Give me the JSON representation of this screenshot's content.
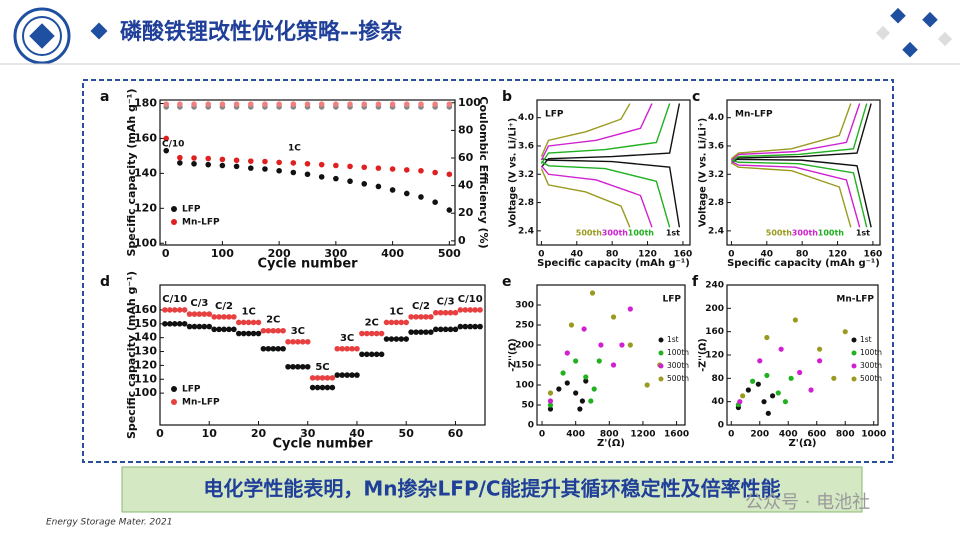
{
  "header": {
    "title": "磷酸铁锂改性优化策略--掺杂"
  },
  "caption": "电化学性能表明，Mn掺杂LFP/C能提升其循环稳定性及倍率性能",
  "footer": "Energy Storage Mater. 2021",
  "watermark": "公众号 · 电池社",
  "chart_data": [
    {
      "type": "scatter",
      "panel": "a",
      "xlabel": "Cycle number",
      "ylabel": "Specific capacity (mAh g⁻¹)",
      "y2label": "Coulombic Efficiency (%)",
      "xlim": [
        -10,
        510
      ],
      "xticks": [
        0,
        100,
        200,
        300,
        400,
        500
      ],
      "ylim": [
        99,
        182
      ],
      "yticks": [
        100,
        120,
        140,
        160,
        180
      ],
      "y2lim": [
        -3,
        102
      ],
      "y2ticks": [
        0,
        20,
        40,
        60,
        80,
        100
      ],
      "legend": "lower left",
      "annotations": [
        "C/10",
        "1C"
      ],
      "series": [
        {
          "name": "LFP",
          "color": "#111111",
          "x": [
            1,
            25,
            50,
            75,
            100,
            125,
            150,
            175,
            200,
            225,
            250,
            275,
            300,
            325,
            350,
            375,
            400,
            425,
            450,
            475,
            500
          ],
          "values": [
            153,
            146,
            145.5,
            145,
            144.5,
            144,
            143,
            142.5,
            141.5,
            140.5,
            139.5,
            138,
            137,
            135.5,
            134,
            132.5,
            130.5,
            128.5,
            126.5,
            123.5,
            119
          ]
        },
        {
          "name": "Mn-LFP",
          "color": "#e02020",
          "x": [
            1,
            25,
            50,
            75,
            100,
            125,
            150,
            175,
            200,
            225,
            250,
            275,
            300,
            325,
            350,
            375,
            400,
            425,
            450,
            475,
            500
          ],
          "values": [
            160,
            149,
            148.8,
            148.5,
            148,
            147.5,
            147,
            146.8,
            146.3,
            146,
            145.5,
            145,
            144.5,
            144,
            143.5,
            143,
            142.5,
            142,
            141.5,
            140.5,
            139.5
          ]
        },
        {
          "axis": "y2",
          "color": "#888888",
          "x": [
            1,
            25,
            50,
            75,
            100,
            125,
            150,
            175,
            200,
            225,
            250,
            275,
            300,
            325,
            350,
            375,
            400,
            425,
            450,
            475,
            500
          ],
          "values": [
            97,
            97,
            97,
            97,
            97,
            97,
            97,
            97,
            97,
            97,
            97,
            97,
            97,
            97,
            97,
            97,
            97,
            97,
            97,
            97,
            97
          ]
        },
        {
          "axis": "y2",
          "color": "#f08080",
          "x": [
            1,
            25,
            50,
            75,
            100,
            125,
            150,
            175,
            200,
            225,
            250,
            275,
            300,
            325,
            350,
            375,
            400,
            425,
            450,
            475,
            500
          ],
          "values": [
            99,
            99,
            99,
            99,
            99,
            99,
            99,
            99,
            99,
            99,
            99,
            99,
            99,
            99,
            99,
            99,
            99,
            99,
            99,
            99,
            99
          ]
        }
      ]
    },
    {
      "type": "line",
      "panel": "b",
      "label": "LFP",
      "xlabel": "Specific capacity (mAh g⁻¹)",
      "ylabel": "Voltage (V vs. Li/Li⁺)",
      "xlim": [
        -5,
        168
      ],
      "xticks": [
        0,
        40,
        80,
        120,
        160
      ],
      "ylim": [
        2.2,
        4.25
      ],
      "yticks": [
        2.4,
        2.8,
        3.2,
        3.6,
        {
          "value": 4,
          "label": "4.0"
        }
      ],
      "legend": "bottom",
      "series": [
        {
          "name": "1st",
          "color": "#111111",
          "charge": {
            "x": [
              0,
              8,
              80,
              145,
              156
            ],
            "values": [
              3.3,
              3.42,
              3.45,
              3.5,
              4.2
            ]
          },
          "discharge": {
            "x": [
              0,
              8,
              80,
              145,
              156
            ],
            "values": [
              3.42,
              3.4,
              3.38,
              3.3,
              2.45
            ]
          }
        },
        {
          "name": "100th",
          "color": "#20b020",
          "charge": {
            "x": [
              0,
              8,
              72,
              130,
              145
            ],
            "values": [
              3.35,
              3.5,
              3.55,
              3.65,
              4.2
            ]
          },
          "discharge": {
            "x": [
              0,
              8,
              72,
              130,
              145
            ],
            "values": [
              3.38,
              3.32,
              3.28,
              3.1,
              2.45
            ]
          }
        },
        {
          "name": "300th",
          "color": "#d020d0",
          "charge": {
            "x": [
              0,
              8,
              62,
              112,
              125
            ],
            "values": [
              3.4,
              3.6,
              3.68,
              3.85,
              4.2
            ]
          },
          "discharge": {
            "x": [
              0,
              8,
              62,
              112,
              125
            ],
            "values": [
              3.32,
              3.2,
              3.12,
              2.9,
              2.45
            ]
          }
        },
        {
          "name": "500th",
          "color": "#9a9a20",
          "charge": {
            "x": [
              0,
              8,
              50,
              90,
              100
            ],
            "values": [
              3.45,
              3.68,
              3.8,
              3.98,
              4.2
            ]
          },
          "discharge": {
            "x": [
              0,
              8,
              50,
              90,
              100
            ],
            "values": [
              3.28,
              3.05,
              2.95,
              2.75,
              2.45
            ]
          }
        }
      ]
    },
    {
      "type": "line",
      "panel": "c",
      "label": "Mn-LFP",
      "xlabel": "Specific capacity (mAh g⁻¹)",
      "ylabel": "Voltage (V vs. Li/Li⁺)",
      "xlim": [
        -5,
        168
      ],
      "xticks": [
        0,
        40,
        80,
        120,
        160
      ],
      "ylim": [
        2.2,
        4.25
      ],
      "yticks": [
        2.4,
        2.8,
        3.2,
        3.6,
        {
          "value": 4,
          "label": "4.0"
        }
      ],
      "legend": "bottom",
      "series": [
        {
          "name": "1st",
          "color": "#111111",
          "charge": {
            "x": [
              0,
              8,
              79,
              142,
              158
            ],
            "values": [
              3.35,
              3.43,
              3.45,
              3.5,
              4.2
            ]
          },
          "discharge": {
            "x": [
              0,
              8,
              79,
              142,
              158
            ],
            "values": [
              3.42,
              3.41,
              3.4,
              3.32,
              2.45
            ]
          }
        },
        {
          "name": "100th",
          "color": "#20b020",
          "charge": {
            "x": [
              0,
              8,
              76,
              138,
              153
            ],
            "values": [
              3.38,
              3.45,
              3.48,
              3.56,
              4.2
            ]
          },
          "discharge": {
            "x": [
              0,
              8,
              76,
              138,
              153
            ],
            "values": [
              3.4,
              3.37,
              3.35,
              3.22,
              2.45
            ]
          }
        },
        {
          "name": "300th",
          "color": "#d020d0",
          "charge": {
            "x": [
              0,
              8,
              72,
              130,
              145
            ],
            "values": [
              3.4,
              3.48,
              3.52,
              3.65,
              4.2
            ]
          },
          "discharge": {
            "x": [
              0,
              8,
              72,
              130,
              145
            ],
            "values": [
              3.38,
              3.33,
              3.3,
              3.12,
              2.45
            ]
          }
        },
        {
          "name": "500th",
          "color": "#9a9a20",
          "charge": {
            "x": [
              0,
              8,
              68,
              122,
              135
            ],
            "values": [
              3.42,
              3.5,
              3.56,
              3.75,
              4.2
            ]
          },
          "discharge": {
            "x": [
              0,
              8,
              68,
              122,
              135
            ],
            "values": [
              3.36,
              3.3,
              3.25,
              3.02,
              2.45
            ]
          }
        }
      ]
    },
    {
      "type": "scatter",
      "panel": "d",
      "xlabel": "Cycle number",
      "ylabel": "Specific capacity (mAh g⁻¹)",
      "xlim": [
        0,
        66
      ],
      "xticks": [
        0,
        10,
        20,
        30,
        40,
        50,
        60
      ],
      "ylim": [
        77,
        178
      ],
      "yticks": [
        100,
        110,
        120,
        130,
        140,
        150,
        160
      ],
      "legend": "lower left",
      "rate_labels": [
        "C/10",
        "C/3",
        "C/2",
        "1C",
        "2C",
        "3C",
        "5C",
        "3C",
        "2C",
        "1C",
        "C/2",
        "C/3",
        "C/10"
      ],
      "series": [
        {
          "name": "LFP",
          "color": "#111111",
          "x": [
            1,
            2,
            3,
            4,
            5,
            6,
            7,
            8,
            9,
            10,
            11,
            12,
            13,
            14,
            15,
            16,
            17,
            18,
            19,
            20,
            21,
            22,
            23,
            24,
            25,
            26,
            27,
            28,
            29,
            30,
            31,
            32,
            33,
            34,
            35,
            36,
            37,
            38,
            39,
            40,
            41,
            42,
            43,
            44,
            45,
            46,
            47,
            48,
            49,
            50,
            51,
            52,
            53,
            54,
            55,
            56,
            57,
            58,
            59,
            60,
            61,
            62,
            63,
            64,
            65
          ],
          "values": [
            150,
            150,
            150,
            150,
            150,
            148,
            148,
            148,
            148,
            148,
            146,
            146,
            146,
            146,
            146,
            143,
            143,
            143,
            143,
            143,
            132,
            132,
            132,
            132,
            132,
            119,
            119,
            119,
            119,
            119,
            104,
            104,
            104,
            104,
            104,
            113,
            113,
            113,
            113,
            113,
            128,
            128,
            128,
            128,
            128,
            139,
            139,
            139,
            139,
            139,
            144,
            144,
            144,
            144,
            144,
            146,
            146,
            146,
            146,
            146,
            148,
            148,
            148,
            148,
            148
          ]
        },
        {
          "name": "Mn-LFP",
          "color": "#e84040",
          "x": [
            1,
            2,
            3,
            4,
            5,
            6,
            7,
            8,
            9,
            10,
            11,
            12,
            13,
            14,
            15,
            16,
            17,
            18,
            19,
            20,
            21,
            22,
            23,
            24,
            25,
            26,
            27,
            28,
            29,
            30,
            31,
            32,
            33,
            34,
            35,
            36,
            37,
            38,
            39,
            40,
            41,
            42,
            43,
            44,
            45,
            46,
            47,
            48,
            49,
            50,
            51,
            52,
            53,
            54,
            55,
            56,
            57,
            58,
            59,
            60,
            61,
            62,
            63,
            64,
            65
          ],
          "values": [
            160,
            160,
            160,
            160,
            160,
            157,
            157,
            157,
            157,
            157,
            155,
            155,
            155,
            155,
            155,
            151,
            151,
            151,
            151,
            151,
            145,
            145,
            145,
            145,
            145,
            137,
            137,
            137,
            137,
            137,
            111,
            111,
            111,
            111,
            111,
            132,
            132,
            132,
            132,
            132,
            143,
            143,
            143,
            143,
            143,
            151,
            151,
            151,
            151,
            151,
            155,
            155,
            155,
            155,
            155,
            158,
            158,
            158,
            158,
            158,
            160,
            160,
            160,
            160,
            160
          ]
        }
      ]
    },
    {
      "type": "scatter",
      "panel": "e",
      "label": "LFP",
      "xlabel": "Z'(Ω)",
      "ylabel": "-Z''(Ω)",
      "xlim": [
        -60,
        1700
      ],
      "xticks": [
        0,
        400,
        800,
        1200,
        1600
      ],
      "ylim": [
        0,
        350
      ],
      "yticks": [
        0,
        50,
        100,
        150,
        200,
        250,
        300
      ],
      "legend": "right",
      "series": [
        {
          "name": "1st",
          "color": "#111111",
          "x": [
            100,
            200,
            300,
            400,
            450,
            480,
            520
          ],
          "values": [
            40,
            90,
            105,
            80,
            40,
            60,
            110
          ]
        },
        {
          "name": "100th",
          "color": "#20b020",
          "x": [
            100,
            250,
            400,
            520,
            580,
            620,
            680
          ],
          "values": [
            50,
            130,
            160,
            120,
            60,
            90,
            160
          ]
        },
        {
          "name": "300th",
          "color": "#d020d0",
          "x": [
            100,
            300,
            500,
            700,
            850,
            950,
            1050
          ],
          "values": [
            60,
            180,
            240,
            200,
            150,
            200,
            290
          ]
        },
        {
          "name": "500th",
          "color": "#9a9a20",
          "x": [
            100,
            350,
            600,
            850,
            1050,
            1250,
            1400
          ],
          "values": [
            80,
            250,
            330,
            270,
            200,
            100,
            150
          ]
        }
      ]
    },
    {
      "type": "scatter",
      "panel": "f",
      "label": "Mn-LFP",
      "xlabel": "Z'(Ω)",
      "ylabel": "-Z''(Ω)",
      "xlim": [
        -30,
        1030
      ],
      "xticks": [
        0,
        200,
        400,
        600,
        800,
        1000
      ],
      "ylim": [
        0,
        240
      ],
      "yticks": [
        0,
        40,
        80,
        120,
        160,
        200,
        240
      ],
      "legend": "right",
      "series": [
        {
          "name": "1st",
          "color": "#111111",
          "x": [
            50,
            120,
            190,
            230,
            260,
            290
          ],
          "values": [
            30,
            60,
            70,
            40,
            20,
            50
          ]
        },
        {
          "name": "100th",
          "color": "#20b020",
          "x": [
            50,
            150,
            250,
            330,
            380,
            420
          ],
          "values": [
            35,
            75,
            85,
            55,
            40,
            80
          ]
        },
        {
          "name": "300th",
          "color": "#d020d0",
          "x": [
            60,
            200,
            350,
            480,
            560,
            620
          ],
          "values": [
            40,
            110,
            130,
            90,
            60,
            110
          ]
        },
        {
          "name": "500th",
          "color": "#9a9a20",
          "x": [
            80,
            250,
            450,
            620,
            720,
            800
          ],
          "values": [
            50,
            150,
            180,
            130,
            80,
            160
          ]
        }
      ]
    }
  ]
}
